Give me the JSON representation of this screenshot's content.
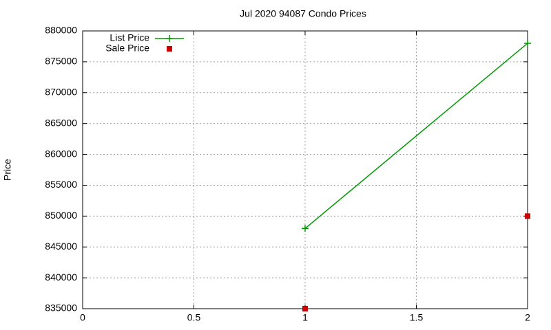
{
  "chart_data": {
    "type": "line",
    "title": "Jul 2020 94087 Condo Prices",
    "y_label": "Price",
    "x": [
      1,
      2
    ],
    "series": [
      {
        "name": "List Price",
        "color": "#009900",
        "values": [
          848000,
          878000
        ],
        "line": true,
        "marker": "plus"
      },
      {
        "name": "Sale Price",
        "color": "#cc0000",
        "values": [
          835000,
          850000
        ],
        "line": false,
        "marker": "square"
      }
    ],
    "xlim": [
      0,
      2
    ],
    "xticks": [
      0,
      0.5,
      1,
      1.5,
      2
    ],
    "ylim": [
      835000,
      880000
    ],
    "yticks": [
      835000,
      840000,
      845000,
      850000,
      855000,
      860000,
      865000,
      870000,
      875000,
      880000
    ],
    "grid": true,
    "legend": "top-left"
  }
}
